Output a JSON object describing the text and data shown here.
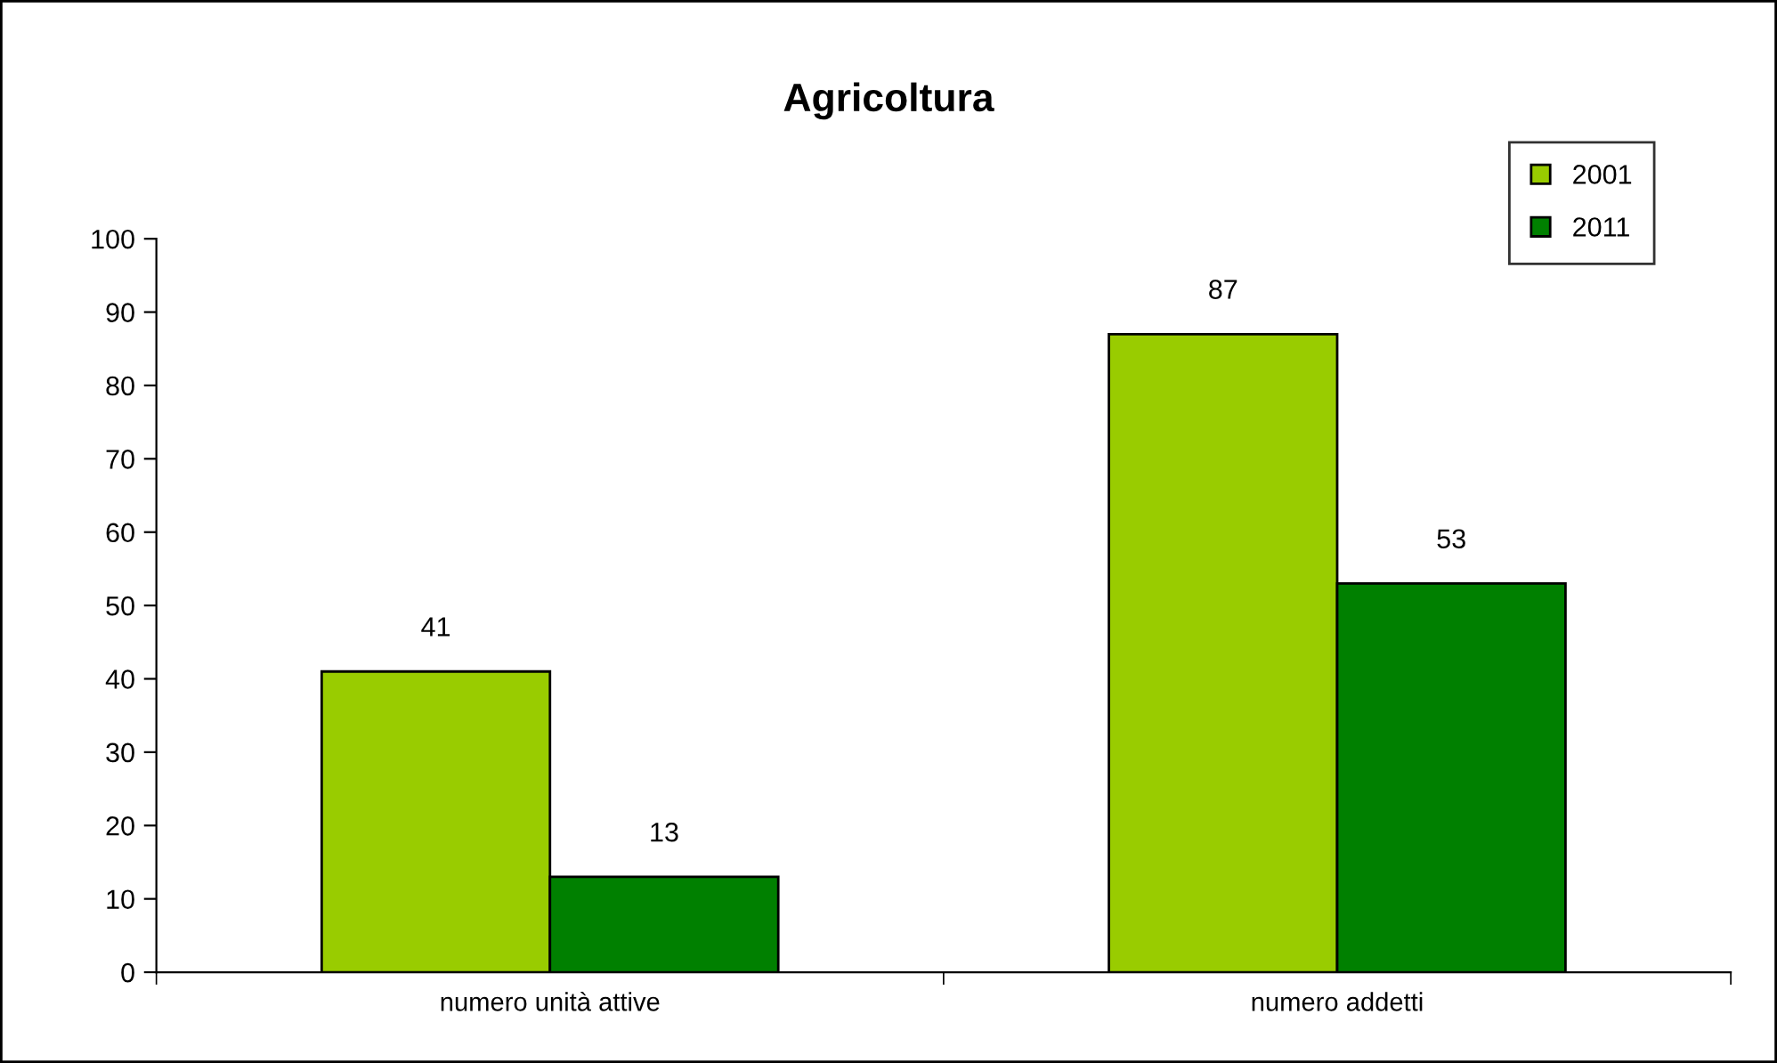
{
  "chart_data": {
    "type": "bar",
    "title": "Agricoltura",
    "categories": [
      "numero unità attive",
      "numero addetti"
    ],
    "series": [
      {
        "name": "2001",
        "color": "#99cc00",
        "values": [
          41,
          87
        ]
      },
      {
        "name": "2011",
        "color": "#008000",
        "values": [
          13,
          53
        ]
      }
    ],
    "ylim": [
      0,
      100
    ],
    "yticks": [
      0,
      10,
      20,
      30,
      40,
      50,
      60,
      70,
      80,
      90,
      100
    ],
    "grid": false,
    "legend": "top right",
    "data_labels": true
  }
}
